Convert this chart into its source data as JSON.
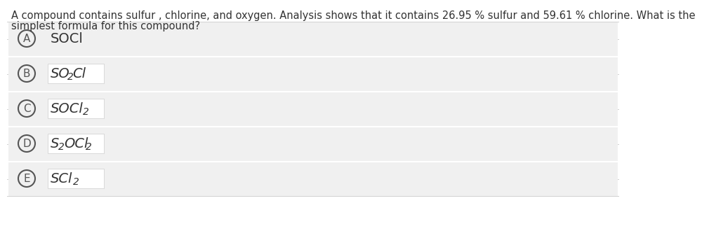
{
  "question_line1": "A compound contains sulfur , chlorine, and oxygen. Analysis shows that it contains 26.95 % sulfur and 59.61 % chlorine. What is the",
  "question_line2": "simplest formula for this compound?",
  "options": [
    {
      "label": "A",
      "formula": "SOCl",
      "has_white_box": false
    },
    {
      "label": "B",
      "formula": "SO2Cl",
      "has_white_box": true
    },
    {
      "label": "C",
      "formula": "SOCl2",
      "has_white_box": true
    },
    {
      "label": "D",
      "formula": "S2OCl2",
      "has_white_box": true
    },
    {
      "label": "E",
      "formula": "SCl2",
      "has_white_box": true
    }
  ],
  "bg_color": "#ffffff",
  "option_bg_color": "#f0f0f0",
  "white_box_color": "#ffffff",
  "text_color": "#333333",
  "circle_color": "#555555",
  "separator_color": "#d0d0d0",
  "question_fontsize": 10.5,
  "option_fontsize": 14,
  "label_fontsize": 11,
  "sub_fontsize": 10
}
